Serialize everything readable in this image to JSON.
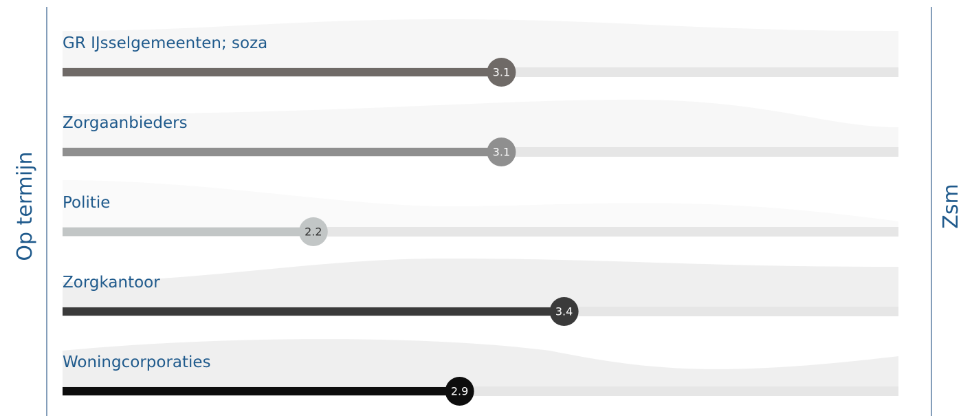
{
  "chart_data": {
    "type": "bar",
    "x_start_label": "Op termijn",
    "x_end_label": "Zsm",
    "categories": [
      "GR IJsselgemeenten; soza",
      "Zorgaanbieders",
      "Politie",
      "Zorgkantoor",
      "Woningcorporaties"
    ],
    "values": [
      3.1,
      3.1,
      2.2,
      3.4,
      2.9
    ],
    "colors": [
      "#6f6a67",
      "#8f8f8f",
      "#c2c6c6",
      "#3a3a3a",
      "#0d0d0d"
    ],
    "xlim": [
      1,
      5
    ]
  }
}
